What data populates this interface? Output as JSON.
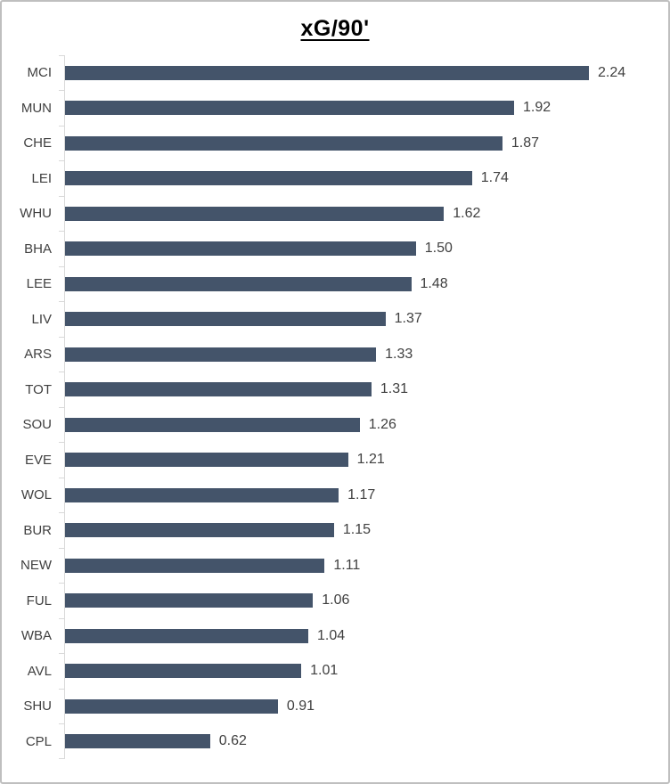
{
  "title": "xG/90'",
  "chart_data": {
    "type": "bar",
    "orientation": "horizontal",
    "title": "xG/90'",
    "xlabel": "",
    "ylabel": "",
    "xlim": [
      0,
      2.4
    ],
    "grid": false,
    "legend": false,
    "data_labels": true,
    "categories": [
      "MCI",
      "MUN",
      "CHE",
      "LEI",
      "WHU",
      "BHA",
      "LEE",
      "LIV",
      "ARS",
      "TOT",
      "SOU",
      "EVE",
      "WOL",
      "BUR",
      "NEW",
      "FUL",
      "WBA",
      "AVL",
      "SHU",
      "CPL"
    ],
    "values": [
      2.24,
      1.92,
      1.87,
      1.74,
      1.62,
      1.5,
      1.48,
      1.37,
      1.33,
      1.31,
      1.26,
      1.21,
      1.17,
      1.15,
      1.11,
      1.06,
      1.04,
      1.01,
      0.91,
      0.62
    ],
    "value_labels": [
      "2.24",
      "1.92",
      "1.87",
      "1.74",
      "1.62",
      "1.50",
      "1.48",
      "1.37",
      "1.33",
      "1.31",
      "1.26",
      "1.21",
      "1.17",
      "1.15",
      "1.11",
      "1.06",
      "1.04",
      "1.01",
      "0.91",
      "0.62"
    ],
    "colors": {
      "bar": "#44546A",
      "axis": "#D9D9D9",
      "label": "#404040",
      "title": "#000000",
      "frame_border": "#BFBFBF",
      "background": "#FFFFFF"
    }
  }
}
